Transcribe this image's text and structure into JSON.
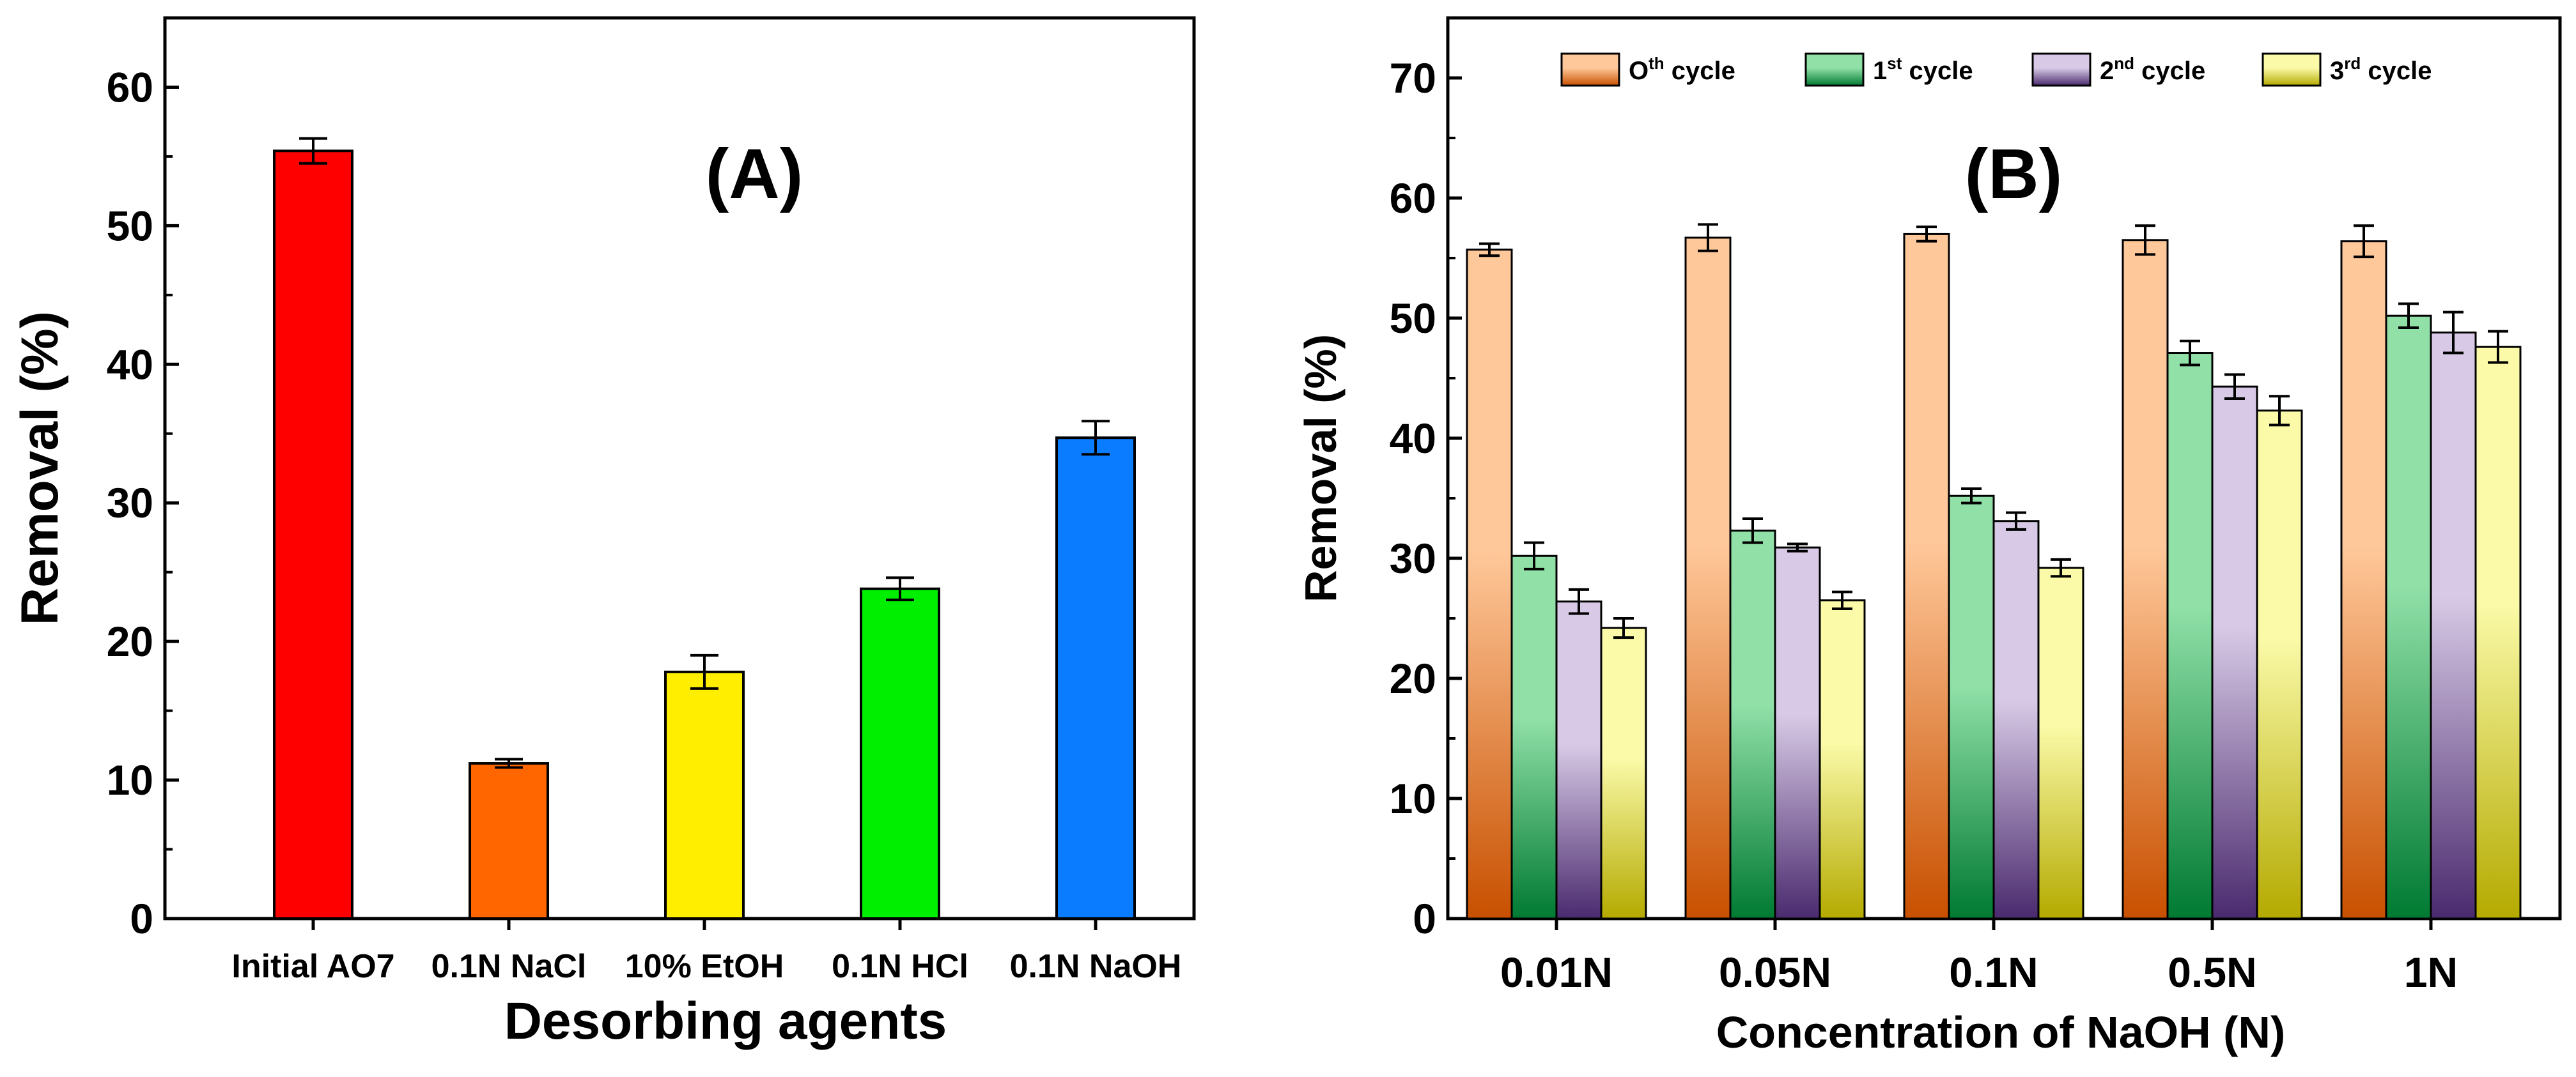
{
  "chart_data": [
    {
      "id": "A",
      "type": "bar",
      "panel_label": "(A)",
      "xlabel": "Desorbing agents",
      "ylabel": "Removal (%)",
      "ylim": [
        0,
        65
      ],
      "yticks": [
        0,
        10,
        20,
        30,
        40,
        50,
        60
      ],
      "categories": [
        "Initial AO7",
        "0.1N NaCl",
        "10% EtOH",
        "0.1N HCl",
        "0.1N NaOH"
      ],
      "values": [
        55.4,
        11.2,
        17.8,
        23.8,
        34.7
      ],
      "errors": [
        0.9,
        0.3,
        1.2,
        0.8,
        1.2
      ],
      "colors": [
        "#ff0000",
        "#ff6600",
        "#ffee00",
        "#00ee00",
        "#0a7cff"
      ]
    },
    {
      "id": "B",
      "type": "bar",
      "panel_label": "(B)",
      "xlabel": "Concentration of NaOH (N)",
      "ylabel": "Removal (%)",
      "ylim": [
        0,
        75
      ],
      "yticks": [
        0,
        10,
        20,
        30,
        40,
        50,
        60,
        70
      ],
      "categories": [
        "0.01N",
        "0.05N",
        "0.1N",
        "0.5N",
        "1N"
      ],
      "legend_position": "top",
      "series": [
        {
          "name": "O",
          "sup": "th",
          "suffix": " cycle",
          "values": [
            55.7,
            56.7,
            57.0,
            56.5,
            56.4
          ],
          "errors": [
            0.5,
            1.1,
            0.6,
            1.2,
            1.3
          ],
          "color_light": "#ffc89a",
          "color_dark": "#c85000"
        },
        {
          "name": "1",
          "sup": "st",
          "suffix": " cycle",
          "values": [
            30.2,
            32.3,
            35.2,
            47.1,
            50.2
          ],
          "errors": [
            1.1,
            1.0,
            0.6,
            1.0,
            1.0
          ],
          "color_light": "#90e0a8",
          "color_dark": "#007a32"
        },
        {
          "name": "2",
          "sup": "nd",
          "suffix": " cycle",
          "values": [
            26.4,
            30.9,
            33.1,
            44.3,
            48.8
          ],
          "errors": [
            1.0,
            0.3,
            0.7,
            1.0,
            1.7
          ],
          "color_light": "#d8cae6",
          "color_dark": "#4a2a6e"
        },
        {
          "name": "3",
          "sup": "rd",
          "suffix": " cycle",
          "values": [
            24.2,
            26.5,
            29.2,
            42.3,
            47.6
          ],
          "errors": [
            0.8,
            0.7,
            0.7,
            1.2,
            1.3
          ],
          "color_light": "#fafaa8",
          "color_dark": "#b4aa00"
        }
      ]
    }
  ]
}
